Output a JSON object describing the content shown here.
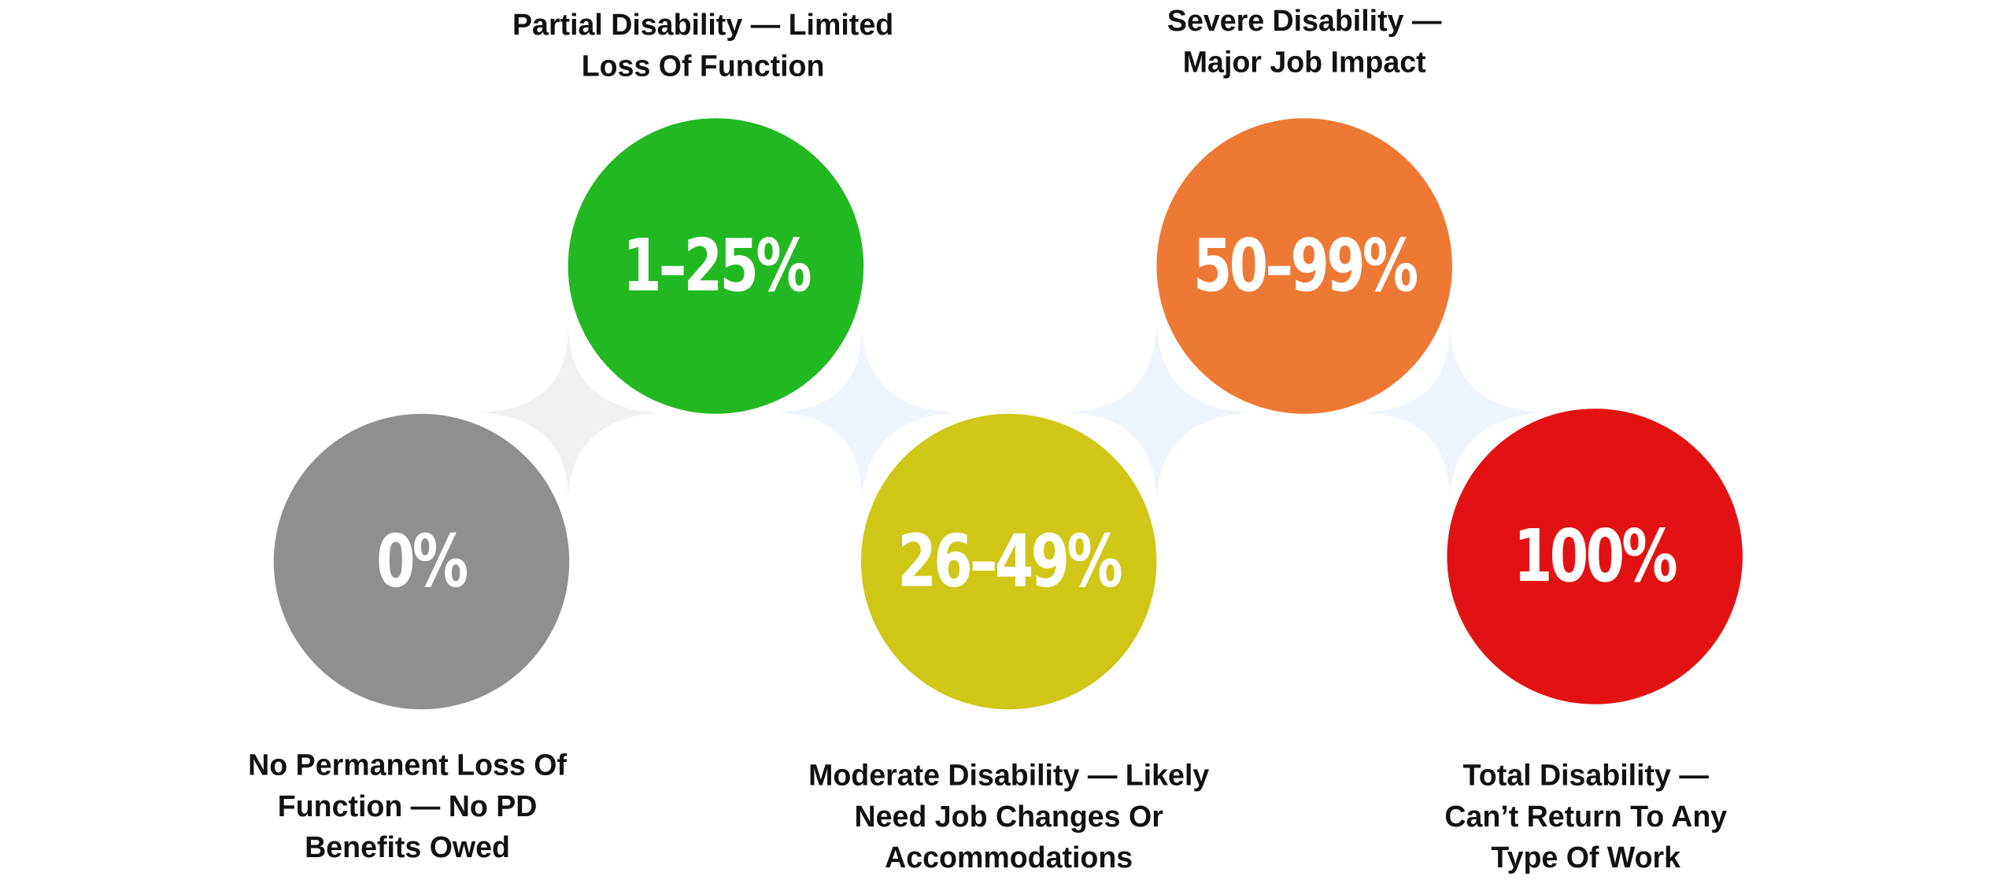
{
  "stages": [
    {
      "value": "0%",
      "caption_lines": [
        "No Permanent Loss Of",
        "Function — No PD",
        "Benefits Owed"
      ],
      "color": "#8f8f8f"
    },
    {
      "value": "1–25%",
      "caption_lines": [
        "Partial Disability — Limited",
        "Loss Of Function"
      ],
      "color": "#22b822"
    },
    {
      "value": "26–49%",
      "caption_lines": [
        "Moderate Disability — Likely",
        "Need Job Changes Or",
        "Accommodations"
      ],
      "color": "#d0c616"
    },
    {
      "value": "50–99%",
      "caption_lines": [
        "Severe Disability —",
        "Major Job Impact"
      ],
      "color": "#ee7935"
    },
    {
      "value": "100%",
      "caption_lines": [
        "Total Disability —",
        "Can’t Return To Any",
        "Type Of Work"
      ],
      "color": "#e31212"
    }
  ],
  "connector_colors": [
    "#eff1f2",
    "#eef5fc",
    "#eef5fc",
    "#eef5fc"
  ]
}
